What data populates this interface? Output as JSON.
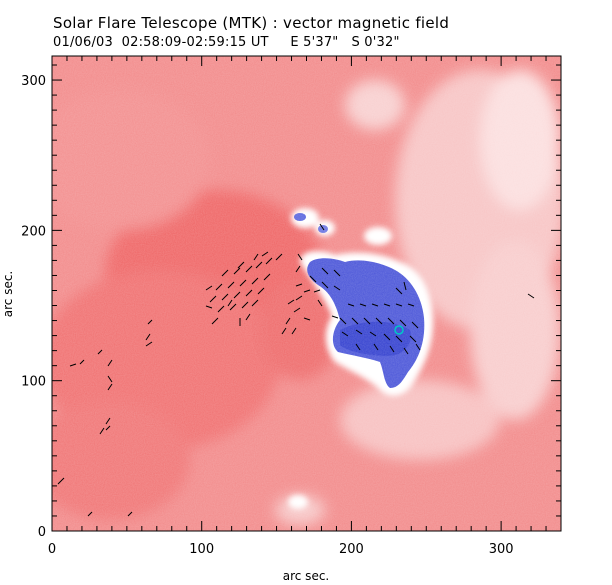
{
  "title": "Solar Flare Telescope (MTK) : vector magnetic field",
  "subtitle": "01/06/03  02:58:09-02:59:15 UT     E 5'37\"   S 0'32\"",
  "axes": {
    "xlabel": "arc sec.",
    "ylabel": "arc sec.",
    "xlim": [
      0,
      340
    ],
    "ylim": [
      0,
      316
    ],
    "xticks": [
      {
        "value": 0,
        "label": "0"
      },
      {
        "value": 100,
        "label": "100"
      },
      {
        "value": 200,
        "label": "200"
      },
      {
        "value": 300,
        "label": "300"
      }
    ],
    "yticks": [
      {
        "value": 0,
        "label": "0"
      },
      {
        "value": 100,
        "label": "100"
      },
      {
        "value": 200,
        "label": "200"
      },
      {
        "value": 300,
        "label": "300"
      }
    ]
  },
  "colors": {
    "positive_field": "#f06d6d",
    "negative_field": "#4a55d8",
    "neutral": "#ffffff",
    "vectors": "#000000",
    "marker": "#00c8c8"
  }
}
